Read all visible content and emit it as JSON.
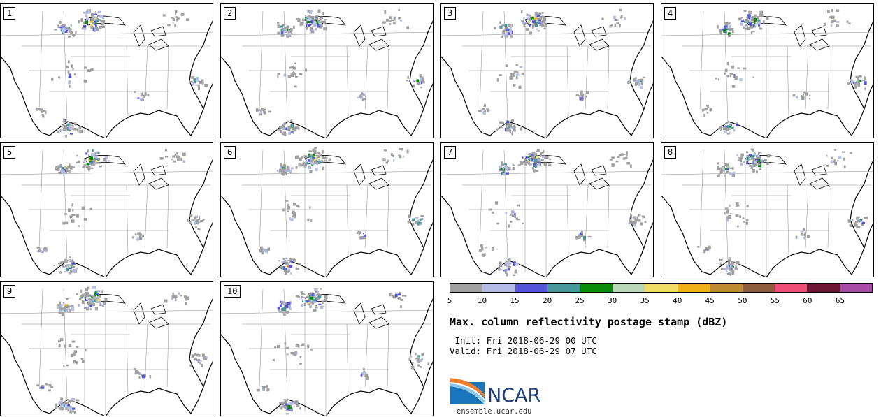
{
  "panels": [
    {
      "label": "1"
    },
    {
      "label": "2"
    },
    {
      "label": "3"
    },
    {
      "label": "4"
    },
    {
      "label": "5"
    },
    {
      "label": "6"
    },
    {
      "label": "7"
    },
    {
      "label": "8"
    },
    {
      "label": "9"
    },
    {
      "label": "10"
    }
  ],
  "colorbar": {
    "colors": [
      "#a0a0a0",
      "#b4bce6",
      "#5454d8",
      "#46989a",
      "#088c08",
      "#b8d8b8",
      "#f0dc64",
      "#f0b018",
      "#c08c30",
      "#8c5c3c",
      "#f05078",
      "#6c1834",
      "#a84ca8"
    ],
    "ticks": [
      "5",
      "10",
      "15",
      "20",
      "25",
      "30",
      "35",
      "40",
      "45",
      "50",
      "55",
      "60",
      "65"
    ]
  },
  "title": "Max. column reflectivity postage stamp (dBZ)",
  "init": " Init: Fri 2018-06-29 00 UTC",
  "valid": "Valid: Fri 2018-06-29 07 UTC",
  "logo": {
    "text": "NCAR",
    "url": "ensemble.ucar.edu"
  }
}
